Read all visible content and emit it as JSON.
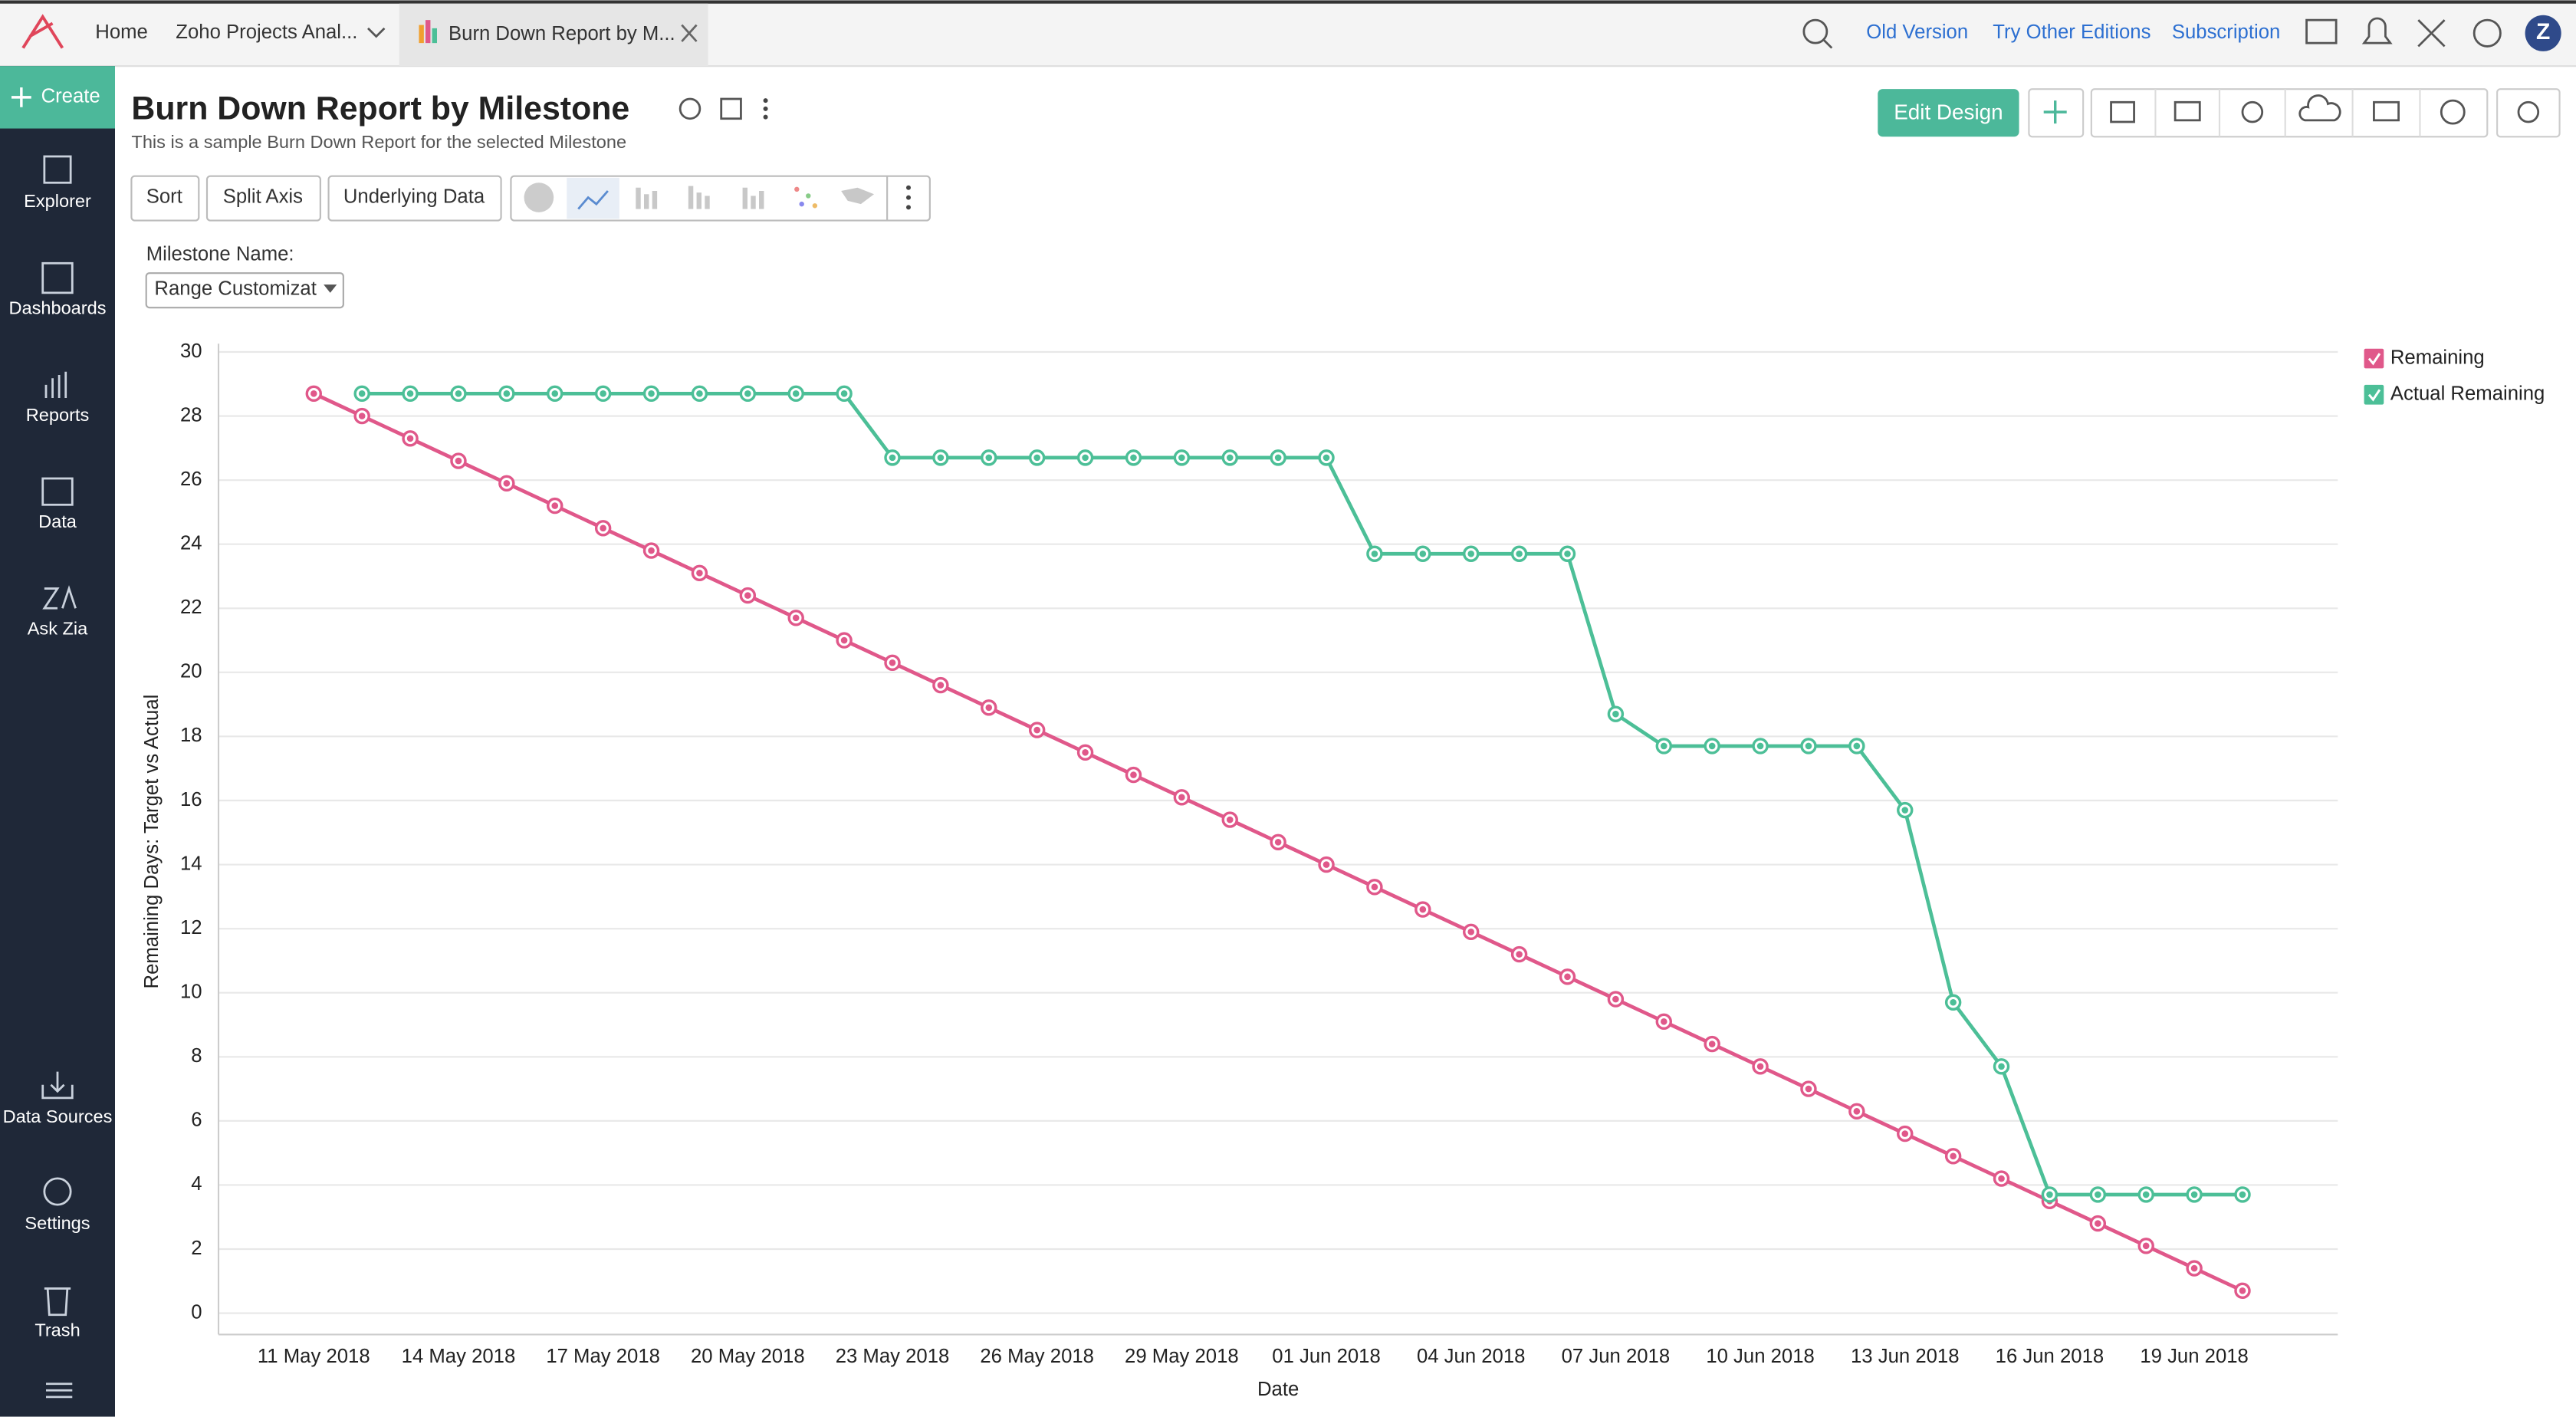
{
  "ui": {
    "tabs": [
      "Home",
      "Zoho Projects Anal...",
      "Burn Down Report by M..."
    ],
    "top_links": [
      "Old Version",
      "Try Other Editions",
      "Subscription"
    ],
    "avatar": "Z",
    "sidebar": [
      "Create",
      "Explorer",
      "Dashboards",
      "Reports",
      "Data",
      "Ask Zia",
      "Data Sources",
      "Settings",
      "Trash"
    ],
    "report_title": "Burn Down Report by Milestone",
    "report_desc": "This is a sample Burn Down Report for the selected Milestone",
    "buttons": [
      "Sort",
      "Split Axis",
      "Underlying Data"
    ],
    "edit_design": "Edit Design",
    "filter_label": "Milestone Name:",
    "filter_value": "Range Customizat"
  },
  "chart_data": {
    "type": "line",
    "x_label": "Date",
    "y_label": "Remaining Days: Target vs Actual",
    "categories": [
      "11 May 2018",
      null,
      null,
      "14 May 2018",
      null,
      null,
      "17 May 2018",
      null,
      null,
      "20 May 2018",
      null,
      null,
      "23 May 2018",
      null,
      null,
      "26 May 2018",
      null,
      null,
      "29 May 2018",
      null,
      null,
      "01 Jun 2018",
      null,
      null,
      "04 Jun 2018",
      null,
      null,
      "07 Jun 2018",
      null,
      null,
      "10 Jun 2018",
      null,
      null,
      "13 Jun 2018",
      null,
      null,
      "16 Jun 2018",
      null,
      null,
      "19 Jun 2018",
      null
    ],
    "series": [
      {
        "name": "Remaining",
        "color": "#e0588a",
        "values": [
          28.7,
          28,
          27.3,
          26.6,
          25.9,
          25.2,
          24.5,
          23.8,
          23.1,
          22.4,
          21.7,
          21,
          20.3,
          19.6,
          18.9,
          18.2,
          17.5,
          16.8,
          16.1,
          15.4,
          14.7,
          14,
          13.3,
          12.6,
          11.9,
          11.2,
          10.5,
          9.8,
          9.1,
          8.4,
          7.7,
          7,
          6.3,
          5.6,
          4.9,
          4.2,
          3.5,
          2.8,
          2.1,
          1.4,
          0.7
        ]
      },
      {
        "name": "Actual Remaining",
        "color": "#4cbf97",
        "values": [
          null,
          28.7,
          28.7,
          28.7,
          28.7,
          28.7,
          28.7,
          28.7,
          28.7,
          28.7,
          28.7,
          28.7,
          26.7,
          26.7,
          26.7,
          26.7,
          26.7,
          26.7,
          26.7,
          26.7,
          26.7,
          26.7,
          23.7,
          23.7,
          23.7,
          23.7,
          23.7,
          18.7,
          17.7,
          17.7,
          17.7,
          17.7,
          17.7,
          15.7,
          9.7,
          7.7,
          3.7,
          3.7,
          3.7,
          3.7,
          3.7
        ]
      }
    ],
    "ylim": [
      0,
      30
    ],
    "yticks": [
      0,
      2,
      4,
      6,
      8,
      10,
      12,
      14,
      16,
      18,
      20,
      22,
      24,
      26,
      28,
      30
    ],
    "grid": true,
    "legend": "top-right"
  }
}
